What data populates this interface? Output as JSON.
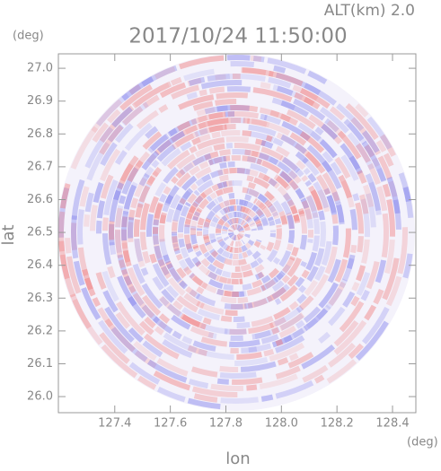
{
  "chart_data": {
    "type": "radar-ppi",
    "title": "2017/10/24 11:50:00",
    "annotation": "ALT(km) 2.0",
    "x_label": "lon",
    "y_label": "lat",
    "x_unit": "(deg)",
    "y_unit": "(deg)",
    "xlim": [
      127.197,
      128.484
    ],
    "ylim": [
      25.951,
      27.044
    ],
    "xticks": [
      127.4,
      127.6,
      127.8,
      {
        "value": 128,
        "label": "128.0"
      },
      128.2,
      128.4
    ],
    "yticks": [
      {
        "value": 26,
        "label": "26.0"
      },
      26.1,
      26.2,
      26.3,
      26.4,
      26.5,
      26.6,
      26.7,
      26.8,
      26.9,
      {
        "value": 27,
        "label": "27.0"
      }
    ]
  }
}
